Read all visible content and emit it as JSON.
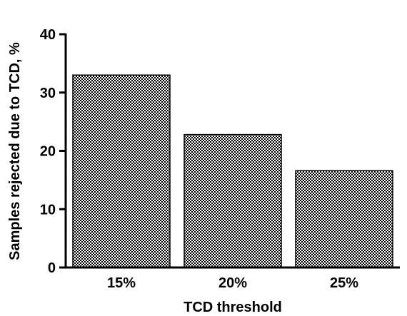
{
  "chart_data": {
    "type": "bar",
    "categories": [
      "15%",
      "20%",
      "25%"
    ],
    "values": [
      33,
      22.8,
      16.6
    ],
    "title": "",
    "xlabel": "TCD threshold",
    "ylabel": "Samples rejected due to TCD, %",
    "ylim": [
      0,
      40
    ],
    "yticks": [
      0,
      10,
      20,
      30,
      40
    ],
    "grid": false,
    "bar_fill": "checkerboard",
    "colors": {
      "bar_dark": "#000000",
      "bar_light": "#ffffff",
      "axis": "#000000"
    }
  }
}
